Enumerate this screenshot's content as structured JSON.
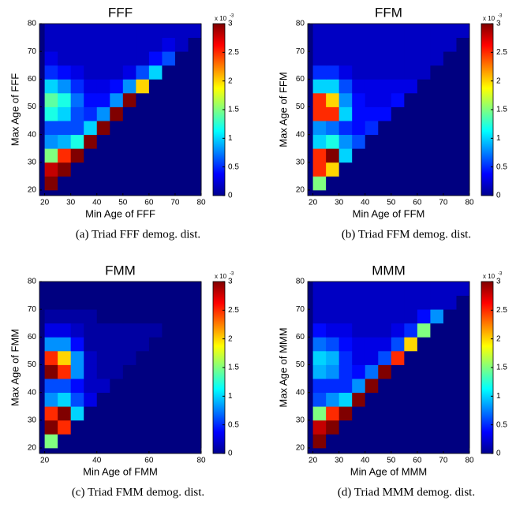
{
  "chart_data": [
    {
      "type": "heatmap",
      "title": "FFF",
      "xlabel": "Min Age of FFF",
      "ylabel": "Max Age of FFF",
      "caption": "(a) Triad FFF demog. dist.",
      "xlim": [
        18,
        80
      ],
      "ylim": [
        18,
        80
      ],
      "xticks": [
        20,
        30,
        40,
        50,
        60,
        70,
        80
      ],
      "yticks": [
        20,
        30,
        40,
        50,
        60,
        70,
        80
      ],
      "xbins": [
        20,
        25,
        30,
        35,
        40,
        45,
        50,
        55,
        60,
        65,
        70,
        75,
        80
      ],
      "ybins": [
        20,
        25,
        30,
        35,
        40,
        45,
        50,
        55,
        60,
        65,
        70,
        75,
        80
      ],
      "clim": [
        0,
        3
      ],
      "cticks": [
        0,
        0.5,
        1,
        1.5,
        2,
        2.5,
        3
      ],
      "colorbar_base": "x 10",
      "colorbar_exponent": "-3",
      "z": [
        [
          3,
          0,
          0,
          0,
          0,
          0,
          0,
          0,
          0,
          0,
          0,
          0
        ],
        [
          2.8,
          3,
          0,
          0,
          0,
          0,
          0,
          0,
          0,
          0,
          0,
          0
        ],
        [
          1.5,
          2.5,
          3,
          0,
          0,
          0,
          0,
          0,
          0,
          0,
          0,
          0
        ],
        [
          0.8,
          0.9,
          1.2,
          3,
          0,
          0,
          0,
          0,
          0,
          0,
          0,
          0
        ],
        [
          0.6,
          0.6,
          0.6,
          1,
          3,
          0,
          0,
          0,
          0,
          0,
          0,
          0
        ],
        [
          1.2,
          1,
          0.6,
          0.5,
          0.8,
          3,
          0,
          0,
          0,
          0,
          0,
          0
        ],
        [
          1.4,
          1.2,
          0.7,
          0.4,
          0.4,
          0.8,
          3,
          0,
          0,
          0,
          0,
          0
        ],
        [
          1,
          0.8,
          0.5,
          0.3,
          0.3,
          0.4,
          0.8,
          2,
          0,
          0,
          0,
          0
        ],
        [
          0.5,
          0.4,
          0.3,
          0.2,
          0.2,
          0.2,
          0.3,
          0.6,
          1,
          0,
          0,
          0
        ],
        [
          0.3,
          0.2,
          0.2,
          0.2,
          0.2,
          0.2,
          0.2,
          0.2,
          0.4,
          0.6,
          0,
          0
        ],
        [
          0.2,
          0.2,
          0.2,
          0.2,
          0.2,
          0.2,
          0.2,
          0.2,
          0.2,
          0.3,
          0.2,
          0
        ],
        [
          0.2,
          0.2,
          0.2,
          0.2,
          0.2,
          0.2,
          0.2,
          0.2,
          0.2,
          0.2,
          0.2,
          0.2
        ]
      ]
    },
    {
      "type": "heatmap",
      "title": "FFM",
      "xlabel": "Min Age of FFM",
      "ylabel": "Max Age of FFM",
      "caption": "(b) Triad FFM demog. dist.",
      "xlim": [
        18,
        80
      ],
      "ylim": [
        18,
        80
      ],
      "xticks": [
        20,
        30,
        40,
        50,
        60,
        70,
        80
      ],
      "yticks": [
        20,
        30,
        40,
        50,
        60,
        70,
        80
      ],
      "xbins": [
        20,
        25,
        30,
        35,
        40,
        45,
        50,
        55,
        60,
        65,
        70,
        75,
        80
      ],
      "ybins": [
        20,
        25,
        30,
        35,
        40,
        45,
        50,
        55,
        60,
        65,
        70,
        75,
        80
      ],
      "clim": [
        0,
        3
      ],
      "cticks": [
        0,
        0.5,
        1,
        1.5,
        2,
        2.5,
        3
      ],
      "colorbar_base": "x 10",
      "colorbar_exponent": "-3",
      "z": [
        [
          1.5,
          0,
          0,
          0,
          0,
          0,
          0,
          0,
          0,
          0,
          0,
          0
        ],
        [
          2.5,
          2,
          0,
          0,
          0,
          0,
          0,
          0,
          0,
          0,
          0,
          0
        ],
        [
          2.5,
          3,
          1,
          0,
          0,
          0,
          0,
          0,
          0,
          0,
          0,
          0
        ],
        [
          1,
          1.2,
          0.8,
          0.6,
          0,
          0,
          0,
          0,
          0,
          0,
          0,
          0
        ],
        [
          0.8,
          0.7,
          0.5,
          0.4,
          0.5,
          0,
          0,
          0,
          0,
          0,
          0,
          0
        ],
        [
          2.5,
          2.5,
          1,
          0.4,
          0.4,
          0.4,
          0,
          0,
          0,
          0,
          0,
          0
        ],
        [
          2.5,
          2,
          0.8,
          0.4,
          0.3,
          0.3,
          0.4,
          0,
          0,
          0,
          0,
          0
        ],
        [
          1,
          1,
          0.6,
          0.3,
          0.3,
          0.3,
          0.3,
          0.3,
          0,
          0,
          0,
          0
        ],
        [
          0.5,
          0.5,
          0.3,
          0.2,
          0.2,
          0.2,
          0.2,
          0.2,
          0.2,
          0,
          0,
          0
        ],
        [
          0.2,
          0.2,
          0.2,
          0.2,
          0.2,
          0.2,
          0.2,
          0.2,
          0.2,
          0.2,
          0,
          0
        ],
        [
          0.2,
          0.2,
          0.2,
          0.2,
          0.2,
          0.2,
          0.2,
          0.2,
          0.2,
          0.2,
          0.2,
          0
        ],
        [
          0.2,
          0.2,
          0.2,
          0.2,
          0.2,
          0.2,
          0.2,
          0.2,
          0.2,
          0.2,
          0.2,
          0.2
        ]
      ]
    },
    {
      "type": "heatmap",
      "title": "FMM",
      "xlabel": "Min Age of FMM",
      "ylabel": "Max Age of FMM",
      "caption": "(c) Triad FMM demog. dist.",
      "xlim": [
        18,
        80
      ],
      "ylim": [
        18,
        80
      ],
      "xticks": [
        20,
        40,
        60,
        80
      ],
      "yticks": [
        20,
        30,
        40,
        50,
        60,
        70,
        80
      ],
      "xbins": [
        20,
        25,
        30,
        35,
        40,
        45,
        50,
        55,
        60,
        65,
        70,
        75,
        80
      ],
      "ybins": [
        20,
        25,
        30,
        35,
        40,
        45,
        50,
        55,
        60,
        65,
        70,
        75,
        80
      ],
      "clim": [
        0,
        3
      ],
      "cticks": [
        0,
        0.5,
        1,
        1.5,
        2,
        2.5,
        3
      ],
      "colorbar_base": "x 10",
      "colorbar_exponent": "-3",
      "z": [
        [
          1.5,
          0,
          0,
          0,
          0,
          0,
          0,
          0,
          0,
          0,
          0,
          0
        ],
        [
          3,
          2.5,
          0,
          0,
          0,
          0,
          0,
          0,
          0,
          0,
          0,
          0
        ],
        [
          2.5,
          3,
          1,
          0,
          0,
          0,
          0,
          0,
          0,
          0,
          0,
          0
        ],
        [
          0.8,
          1,
          0.6,
          0.3,
          0,
          0,
          0,
          0,
          0,
          0,
          0,
          0
        ],
        [
          0.6,
          0.6,
          0.4,
          0.2,
          0.2,
          0,
          0,
          0,
          0,
          0,
          0,
          0
        ],
        [
          3,
          2.5,
          0.8,
          0.2,
          0.1,
          0.1,
          0,
          0,
          0,
          0,
          0,
          0
        ],
        [
          2.5,
          2,
          0.8,
          0.2,
          0.1,
          0.1,
          0.1,
          0,
          0,
          0,
          0,
          0
        ],
        [
          0.8,
          0.8,
          0.4,
          0.1,
          0.1,
          0.1,
          0.1,
          0.1,
          0,
          0,
          0,
          0
        ],
        [
          0.3,
          0.3,
          0.2,
          0.1,
          0.1,
          0.1,
          0.1,
          0.1,
          0.1,
          0,
          0,
          0
        ],
        [
          0.1,
          0.1,
          0.1,
          0.1,
          0,
          0,
          0,
          0,
          0,
          0,
          0,
          0
        ],
        [
          0,
          0,
          0,
          0,
          0,
          0,
          0,
          0,
          0,
          0,
          0,
          0
        ],
        [
          0,
          0,
          0,
          0,
          0,
          0,
          0,
          0,
          0,
          0,
          0,
          0
        ]
      ]
    },
    {
      "type": "heatmap",
      "title": "MMM",
      "xlabel": "Min Age of MMM",
      "ylabel": "Max Age of MMM",
      "caption": "(d) Triad MMM demog. dist.",
      "xlim": [
        18,
        80
      ],
      "ylim": [
        18,
        80
      ],
      "xticks": [
        20,
        30,
        40,
        50,
        60,
        70,
        80
      ],
      "yticks": [
        20,
        30,
        40,
        50,
        60,
        70,
        80
      ],
      "xbins": [
        20,
        25,
        30,
        35,
        40,
        45,
        50,
        55,
        60,
        65,
        70,
        75,
        80
      ],
      "ybins": [
        20,
        25,
        30,
        35,
        40,
        45,
        50,
        55,
        60,
        65,
        70,
        75,
        80
      ],
      "clim": [
        0,
        3
      ],
      "cticks": [
        0,
        0.5,
        1,
        1.5,
        2,
        2.5,
        3
      ],
      "colorbar_base": "x 10",
      "colorbar_exponent": "-3",
      "z": [
        [
          3,
          0,
          0,
          0,
          0,
          0,
          0,
          0,
          0,
          0,
          0,
          0
        ],
        [
          2.8,
          3,
          0,
          0,
          0,
          0,
          0,
          0,
          0,
          0,
          0,
          0
        ],
        [
          1.5,
          2.5,
          3,
          0,
          0,
          0,
          0,
          0,
          0,
          0,
          0,
          0
        ],
        [
          0.6,
          0.8,
          1,
          3,
          0,
          0,
          0,
          0,
          0,
          0,
          0,
          0
        ],
        [
          0.5,
          0.5,
          0.5,
          0.8,
          3,
          0,
          0,
          0,
          0,
          0,
          0,
          0
        ],
        [
          0.9,
          0.8,
          0.5,
          0.4,
          0.7,
          3,
          0,
          0,
          0,
          0,
          0,
          0
        ],
        [
          1,
          0.9,
          0.5,
          0.3,
          0.3,
          0.6,
          2.5,
          0,
          0,
          0,
          0,
          0
        ],
        [
          0.7,
          0.6,
          0.4,
          0.3,
          0.3,
          0.3,
          0.6,
          2,
          0,
          0,
          0,
          0
        ],
        [
          0.4,
          0.3,
          0.3,
          0.2,
          0.2,
          0.2,
          0.3,
          0.5,
          1.5,
          0,
          0,
          0
        ],
        [
          0.2,
          0.2,
          0.2,
          0.2,
          0.2,
          0.2,
          0.2,
          0.2,
          0.4,
          0.8,
          0,
          0
        ],
        [
          0.2,
          0.2,
          0.2,
          0.2,
          0.2,
          0.2,
          0.2,
          0.2,
          0.2,
          0.2,
          0.2,
          0
        ],
        [
          0.2,
          0.2,
          0.2,
          0.2,
          0.2,
          0.2,
          0.2,
          0.2,
          0.2,
          0.2,
          0.2,
          0.2
        ]
      ]
    }
  ]
}
